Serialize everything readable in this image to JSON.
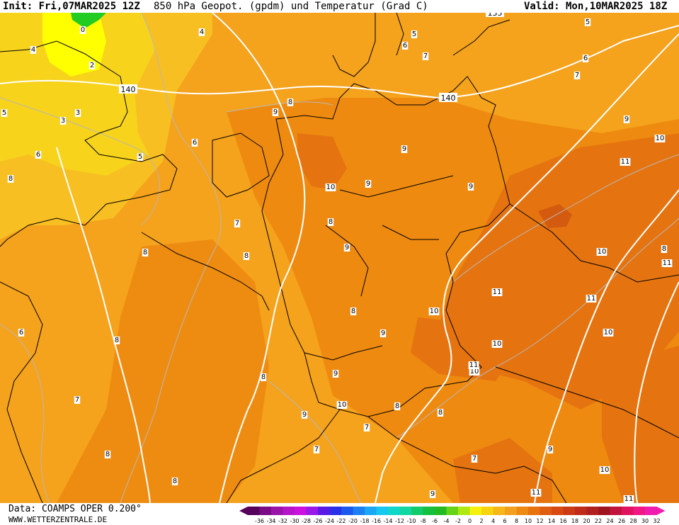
{
  "header": {
    "init": "Init: Fri,07MAR2025 12Z",
    "title": "850 hPa Geopot. (gpdm) und Temperatur (Grad C)",
    "valid": "Valid: Mon,10MAR2025 18Z"
  },
  "footer": {
    "data": "Data: COAMPS OPER 0.200°",
    "source": "WWW.WETTERZENTRALE.DE"
  },
  "colors": {
    "base": "#f5a21c",
    "warm": "#ee8a10",
    "hot": "#e06a0c",
    "cool": "#f8c020",
    "yellow": "#ffff00",
    "green": "#22cc22",
    "geopot_line": "#ffffff",
    "isotherm": "#b0b0b0",
    "border": "#000000"
  },
  "geopotential_labels": [
    "140",
    "140",
    "135"
  ],
  "isotherm_labels": [
    "0",
    "2",
    "3",
    "3",
    "4",
    "4",
    "5",
    "5",
    "5",
    "5",
    "6",
    "6",
    "6",
    "6",
    "6",
    "7",
    "7",
    "7",
    "7",
    "7",
    "7",
    "7",
    "8",
    "8",
    "8",
    "8",
    "8",
    "8",
    "8",
    "8",
    "8",
    "8",
    "8",
    "8",
    "8",
    "9",
    "9",
    "9",
    "9",
    "9",
    "9",
    "9",
    "9",
    "9",
    "9",
    "9",
    "10",
    "10",
    "10",
    "10",
    "10",
    "10",
    "10",
    "10",
    "10",
    "11",
    "11",
    "11",
    "11",
    "11",
    "11",
    "11"
  ],
  "legend": {
    "ticks": [
      "-36",
      "-34",
      "-32",
      "-30",
      "-28",
      "-26",
      "-24",
      "-22",
      "-20",
      "-18",
      "-16",
      "-14",
      "-12",
      "-10",
      "-8",
      "-6",
      "-4",
      "-2",
      "0",
      "2",
      "4",
      "6",
      "8",
      "10",
      "12",
      "14",
      "16",
      "18",
      "20",
      "22",
      "24",
      "26",
      "28",
      "30",
      "32"
    ],
    "colors": [
      "#55005a",
      "#7a0a86",
      "#9a14aa",
      "#b614c8",
      "#cc10e0",
      "#9a18e8",
      "#5a1ae6",
      "#2a30e8",
      "#1a58ee",
      "#1c80f2",
      "#1aa8f6",
      "#16c8f0",
      "#10d8c8",
      "#10d8a0",
      "#12cc6c",
      "#14c040",
      "#22bc22",
      "#66d416",
      "#b0e812",
      "#f6f20e",
      "#f8d410",
      "#f6b818",
      "#f3a01e",
      "#ee8a14",
      "#e8720e",
      "#e05c10",
      "#d84a12",
      "#cc3a16",
      "#c02c1a",
      "#b0201e",
      "#a01420",
      "#c0143c",
      "#e0145e",
      "#f01884",
      "#f01cb0"
    ]
  }
}
